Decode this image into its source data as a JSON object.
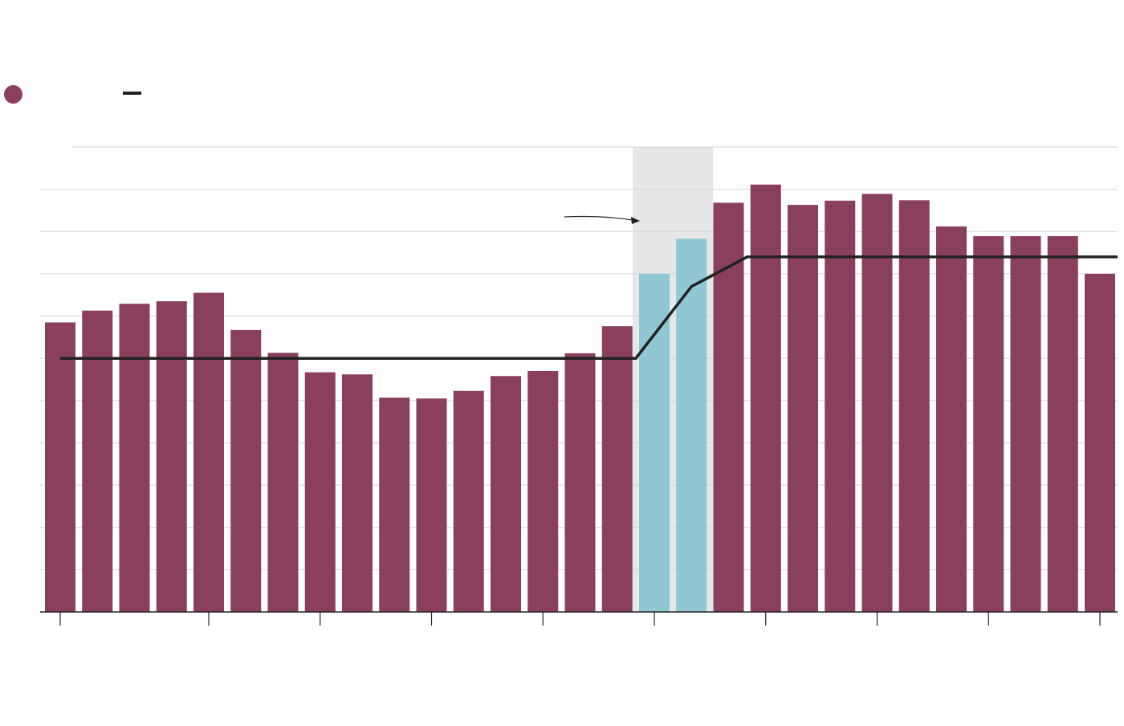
{
  "chart_data": {
    "type": "bar",
    "title": "",
    "xlabel": "",
    "ylabel": "",
    "ylim": [
      0,
      11
    ],
    "grid": true,
    "legend": "top-left",
    "colors": {
      "bar": "#8a3f5f",
      "highlight_bar": "#8fc8d3",
      "highlight_band": "#e6e7e8",
      "line": "#222222",
      "grid": "#d6d6d6",
      "axis": "#222222"
    },
    "bars": [
      {
        "value": 6.85,
        "highlight": false
      },
      {
        "value": 7.13,
        "highlight": false
      },
      {
        "value": 7.29,
        "highlight": false
      },
      {
        "value": 7.35,
        "highlight": false
      },
      {
        "value": 7.55,
        "highlight": false
      },
      {
        "value": 6.67,
        "highlight": false
      },
      {
        "value": 6.13,
        "highlight": false
      },
      {
        "value": 5.67,
        "highlight": false
      },
      {
        "value": 5.62,
        "highlight": false
      },
      {
        "value": 5.07,
        "highlight": false
      },
      {
        "value": 5.05,
        "highlight": false
      },
      {
        "value": 5.23,
        "highlight": false
      },
      {
        "value": 5.58,
        "highlight": false
      },
      {
        "value": 5.7,
        "highlight": false
      },
      {
        "value": 6.12,
        "highlight": false
      },
      {
        "value": 6.76,
        "highlight": false
      },
      {
        "value": 8.0,
        "highlight": true
      },
      {
        "value": 8.83,
        "highlight": true
      },
      {
        "value": 9.68,
        "highlight": false
      },
      {
        "value": 10.11,
        "highlight": false
      },
      {
        "value": 9.63,
        "highlight": false
      },
      {
        "value": 9.73,
        "highlight": false
      },
      {
        "value": 9.89,
        "highlight": false
      },
      {
        "value": 9.74,
        "highlight": false
      },
      {
        "value": 9.12,
        "highlight": false
      },
      {
        "value": 8.89,
        "highlight": false
      },
      {
        "value": 8.89,
        "highlight": false
      },
      {
        "value": 8.89,
        "highlight": false
      },
      {
        "value": 8.0,
        "highlight": false
      }
    ],
    "highlight_range": [
      16,
      17
    ],
    "line": {
      "points": [
        {
          "i": 0,
          "value": 6.0
        },
        {
          "i": 15.5,
          "value": 6.0
        },
        {
          "i": 17,
          "value": 7.7
        },
        {
          "i": 18.5,
          "value": 8.4
        },
        {
          "i": 28.5,
          "value": 8.4
        }
      ]
    },
    "x_ticks": [
      0,
      4,
      7,
      10,
      13,
      16,
      19,
      22,
      25,
      28
    ]
  }
}
